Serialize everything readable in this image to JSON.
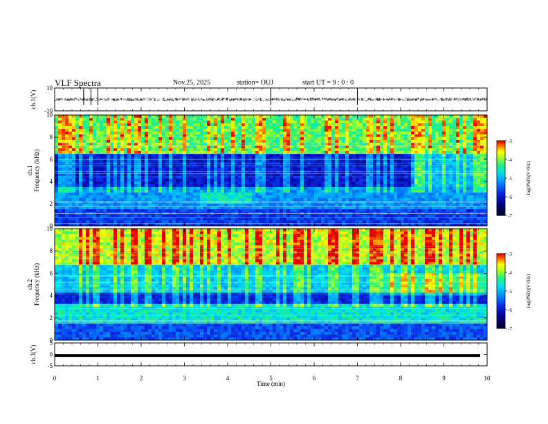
{
  "header": {
    "title": "VLF Spectra",
    "date": "Nov.25, 2025",
    "station": "station= OUJ",
    "start": "start  UT =   9 : 0  : 0"
  },
  "colors": {
    "cmap": [
      "#000000",
      "#000080",
      "#0000ff",
      "#0080ff",
      "#00ffff",
      "#00ff80",
      "#80ff00",
      "#ffff00",
      "#ff8000",
      "#ff0000",
      "#800000",
      "#ff8080",
      "#ffffff"
    ]
  },
  "chart_data": [
    {
      "type": "line",
      "ylabel": "ch.1(V)",
      "ylim": [
        -10,
        10
      ],
      "yticks": [
        "10",
        "-10"
      ],
      "xlim": [
        0,
        10
      ],
      "description_values": {
        "baseline": 0,
        "noise_amplitude": 1
      }
    },
    {
      "type": "heatmap",
      "ylabel": "ch.1\nFrequency (kHz)",
      "ylim": [
        0,
        10
      ],
      "yticks": [
        "0",
        "2",
        "4",
        "6",
        "8",
        "10"
      ],
      "xlim": [
        0,
        10
      ],
      "colorbar": {
        "label": "log(PSD)(V²/Hz)",
        "range": [
          -7,
          -3
        ],
        "ticks": [
          "-3",
          "-4",
          "-5",
          "-6",
          "-7"
        ]
      }
    },
    {
      "type": "heatmap",
      "ylabel": "ch.2\nFrequency (kHz)",
      "ylim": [
        0,
        10
      ],
      "yticks": [
        "0",
        "2",
        "4",
        "6",
        "8",
        "10"
      ],
      "xlim": [
        0,
        10
      ],
      "colorbar": {
        "label": "log(PSD)(V²/Hz)",
        "range": [
          -7,
          -3
        ],
        "ticks": [
          "-3",
          "-4",
          "-5",
          "-6",
          "-7"
        ]
      }
    },
    {
      "type": "line",
      "ylabel": "ch.3(V)",
      "ylim": [
        -5,
        5
      ],
      "yticks": [
        "5",
        "0",
        "-5"
      ],
      "xlim": [
        0,
        10
      ],
      "constant_value": -0.5
    }
  ],
  "xaxis": {
    "label": "Time (min)",
    "ticks": [
      "0",
      "1",
      "2",
      "3",
      "4",
      "5",
      "6",
      "7",
      "8",
      "9",
      "10"
    ]
  }
}
